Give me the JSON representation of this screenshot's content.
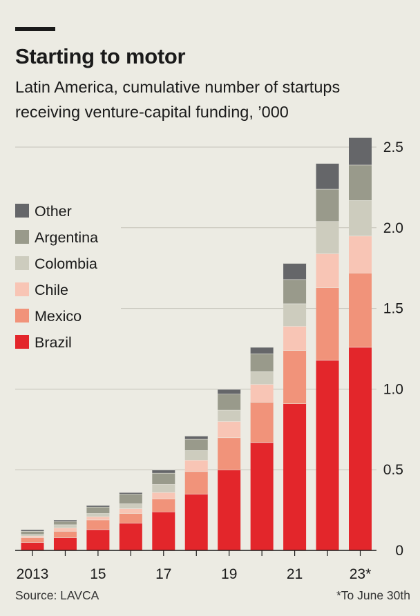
{
  "title": "Starting to motor",
  "subtitle": "Latin America, cumulative number of startups receiving venture-capital funding, ’000",
  "source": "Source: LAVCA",
  "footnote": "*To June 30th",
  "chart_data": {
    "type": "bar",
    "stacked": true,
    "categories": [
      "2013",
      "14",
      "15",
      "16",
      "17",
      "18",
      "19",
      "20",
      "21",
      "22",
      "23*"
    ],
    "x_tick_labels": [
      "2013",
      "",
      "15",
      "",
      "17",
      "",
      "19",
      "",
      "21",
      "",
      "23*"
    ],
    "y_ticks": [
      "0",
      "0.5",
      "1.0",
      "1.5",
      "2.0",
      "2.5"
    ],
    "ylim": [
      0,
      2.5
    ],
    "grid": true,
    "legend_position": "top-left",
    "series": [
      {
        "name": "Brazil",
        "color": "#e3262b",
        "values": [
          0.05,
          0.08,
          0.13,
          0.17,
          0.24,
          0.35,
          0.5,
          0.67,
          0.91,
          1.18,
          1.26
        ]
      },
      {
        "name": "Mexico",
        "color": "#f1937a",
        "values": [
          0.03,
          0.04,
          0.06,
          0.06,
          0.08,
          0.14,
          0.2,
          0.25,
          0.33,
          0.45,
          0.46
        ]
      },
      {
        "name": "Chile",
        "color": "#f8c5b5",
        "values": [
          0.01,
          0.02,
          0.02,
          0.03,
          0.04,
          0.07,
          0.1,
          0.11,
          0.15,
          0.21,
          0.23
        ]
      },
      {
        "name": "Colombia",
        "color": "#cdccbe",
        "values": [
          0.01,
          0.02,
          0.02,
          0.03,
          0.05,
          0.06,
          0.07,
          0.08,
          0.14,
          0.2,
          0.22
        ]
      },
      {
        "name": "Argentina",
        "color": "#999a8b",
        "values": [
          0.02,
          0.02,
          0.04,
          0.06,
          0.07,
          0.07,
          0.1,
          0.11,
          0.15,
          0.2,
          0.22
        ]
      },
      {
        "name": "Other",
        "color": "#656669",
        "values": [
          0.01,
          0.01,
          0.01,
          0.01,
          0.02,
          0.02,
          0.03,
          0.04,
          0.1,
          0.16,
          0.17
        ]
      }
    ]
  }
}
